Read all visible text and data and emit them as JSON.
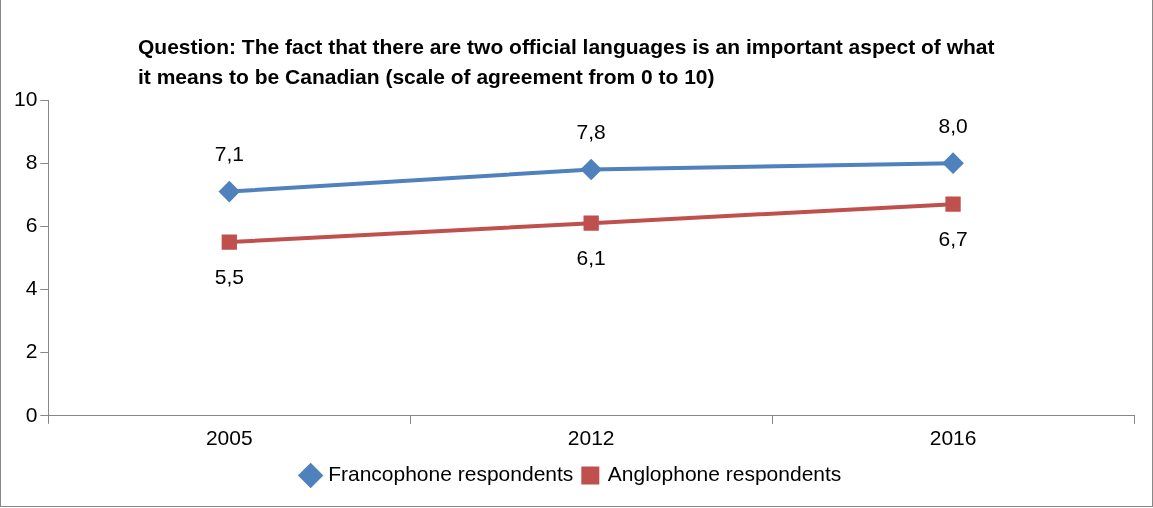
{
  "chart_data": {
    "type": "line",
    "title": "Question: The fact that there are two official languages is an important aspect of what it means to be Canadian (scale of agreement from 0 to 10)",
    "categories": [
      "2005",
      "2012",
      "2016"
    ],
    "series": [
      {
        "name": "Francophone respondents",
        "color": "#4f81bd",
        "marker": "diamond",
        "values": [
          7.1,
          7.8,
          8.0
        ],
        "value_labels": [
          "7,1",
          "7,8",
          "8,0"
        ]
      },
      {
        "name": "Anglophone respondents",
        "color": "#c0504d",
        "marker": "square",
        "values": [
          5.5,
          6.1,
          6.7
        ],
        "value_labels": [
          "5,5",
          "6,1",
          "6,7"
        ]
      }
    ],
    "ylim": [
      0,
      10
    ],
    "yticks": [
      0,
      2,
      4,
      6,
      8,
      10
    ],
    "grid": false,
    "legend": "bottom",
    "line_style": "solid"
  }
}
